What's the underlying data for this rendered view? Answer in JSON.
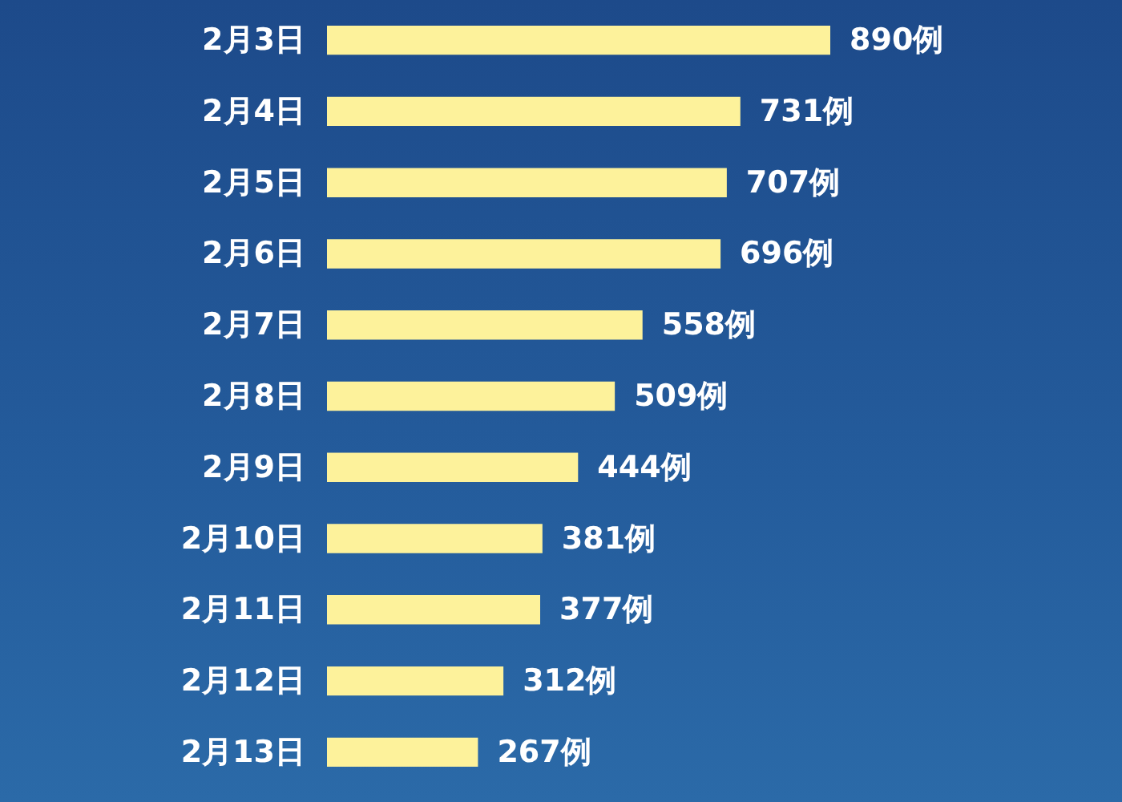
{
  "chart_data": {
    "type": "bar",
    "orientation": "horizontal",
    "categories": [
      "2月3日",
      "2月4日",
      "2月5日",
      "2月6日",
      "2月7日",
      "2月8日",
      "2月9日",
      "2月10日",
      "2月11日",
      "2月12日",
      "2月13日"
    ],
    "values": [
      890,
      731,
      707,
      696,
      558,
      509,
      444,
      381,
      377,
      312,
      267
    ],
    "value_labels": [
      "890例",
      "731例",
      "707例",
      "696例",
      "558例",
      "509例",
      "444例",
      "381例",
      "377例",
      "312例",
      "267例"
    ],
    "color": "#fdf29b"
  }
}
